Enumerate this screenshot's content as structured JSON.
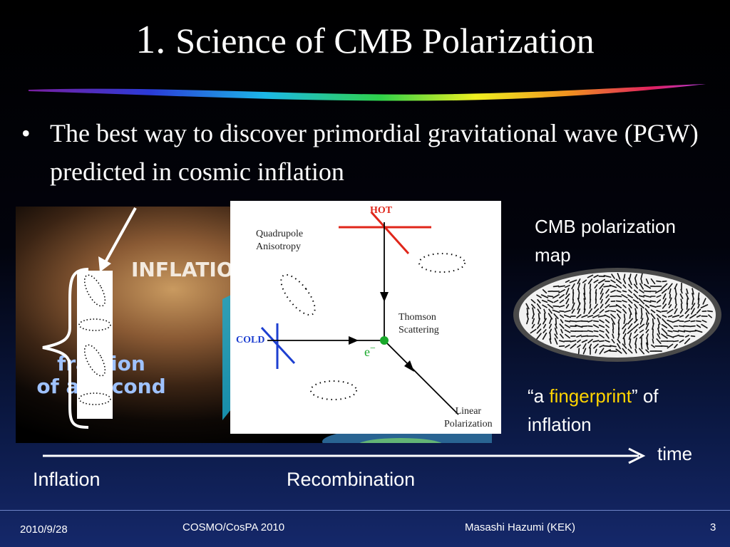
{
  "title": {
    "number": "1.",
    "text": "Science of CMB Polarization"
  },
  "bullet": {
    "symbol": "•",
    "text": "The best way to discover primordial gravitational wave (PGW) predicted in cosmic inflation"
  },
  "inflation_image": {
    "label": "INFLATION",
    "fraction_line1": "fraction",
    "fraction_line2": "of a second"
  },
  "diagram": {
    "hot": "HOT",
    "cold": "COLD",
    "quadrupole_line1": "Quadrupole",
    "quadrupole_line2": "Anisotropy",
    "thomson_line1": "Thomson",
    "thomson_line2": "Scattering",
    "electron": "e",
    "electron_sup": "−",
    "linear_line1": "Linear",
    "linear_line2": "Polarization"
  },
  "cmb_map": {
    "line1": "CMB polarization",
    "line2": "map"
  },
  "fingerprint": {
    "open_quote": "“a ",
    "highlight": "fingerprint",
    "close_quote": "” of",
    "line2": "inflation",
    "highlight_color": "#ffd400"
  },
  "timeline": {
    "time_label": "time",
    "inflation": "Inflation",
    "recombination": "Recombination"
  },
  "footer": {
    "date": "2010/9/28",
    "conference": "COSMO/CosPA 2010",
    "author": "Masashi Hazumi (KEK)",
    "page": "3"
  },
  "colors": {
    "hot": "#e0261a",
    "cold": "#1d3fd0",
    "electron_dot": "#18a82a",
    "bullet_text": "#ffffff"
  }
}
